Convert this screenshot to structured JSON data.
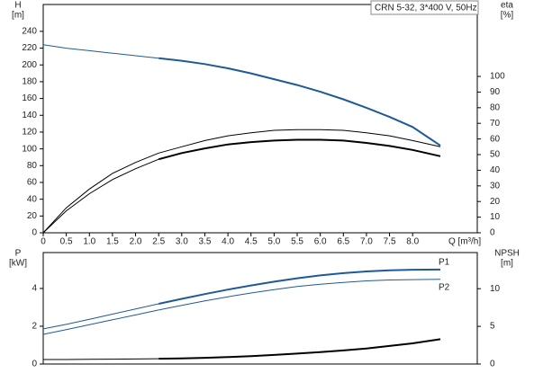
{
  "chart_data": [
    {
      "type": "line",
      "title": "CRN 5-32, 3*400 V, 50Hz",
      "ylabel": [
        "H",
        "[m]"
      ],
      "y2label": [
        "eta",
        "[%]"
      ],
      "xlabel": "Q [m³/h]",
      "xlim": [
        0,
        9.4
      ],
      "xticks": [
        0,
        0.5,
        {
          "value": 1,
          "label": "1.0"
        },
        1.5,
        {
          "value": 2,
          "label": "2.0"
        },
        2.5,
        {
          "value": 3,
          "label": "3.0"
        },
        3.5,
        {
          "value": 4,
          "label": "4.0"
        },
        4.5,
        {
          "value": 5,
          "label": "5.0"
        },
        5.5,
        {
          "value": 6,
          "label": "6.0"
        },
        6.5,
        {
          "value": 7,
          "label": "7.0"
        },
        7.5,
        {
          "value": 8,
          "label": "8.0"
        }
      ],
      "ylim": [
        0,
        272
      ],
      "yticks": [
        0,
        20,
        40,
        60,
        80,
        100,
        120,
        140,
        160,
        180,
        200,
        220,
        240
      ],
      "y2lim": [
        0,
        146
      ],
      "y2ticks": [
        0,
        10,
        20,
        30,
        40,
        50,
        60,
        70,
        80,
        90,
        100
      ],
      "series": [
        {
          "color": "#1f5a96",
          "width": 1,
          "x": [
            0,
            0.5,
            1,
            1.5,
            2,
            2.5
          ],
          "values": [
            224,
            220,
            217,
            214,
            211,
            208
          ]
        },
        {
          "color": "#1f5a96",
          "width": 2,
          "x": [
            2.5,
            3,
            3.5,
            4,
            4.5,
            5,
            5.5,
            6,
            6.5,
            7,
            7.5,
            8,
            8.6
          ],
          "values": [
            208,
            205,
            201,
            196,
            190,
            183,
            176,
            168,
            159,
            149,
            138,
            126,
            104
          ]
        },
        {
          "color": "#000000",
          "width": 1,
          "axis": "y2",
          "x": [
            0,
            0.5,
            1,
            1.5,
            2,
            2.5,
            3,
            3.5,
            4,
            4.5,
            5,
            5.5,
            6,
            6.5,
            7,
            7.5,
            8,
            8.6
          ],
          "values": [
            0,
            16,
            28,
            38,
            45,
            51,
            55,
            59,
            62,
            64,
            65.5,
            66,
            66,
            65.5,
            64,
            62,
            59,
            55
          ]
        },
        {
          "color": "#000000",
          "width": 1,
          "axis": "y2",
          "x": [
            0,
            0.5,
            1,
            1.5,
            2,
            2.5
          ],
          "values": [
            0,
            14,
            25,
            34,
            41,
            47
          ]
        },
        {
          "color": "#000000",
          "width": 2,
          "axis": "y2",
          "x": [
            2.5,
            3,
            3.5,
            4,
            4.5,
            5,
            5.5,
            6,
            6.5,
            7,
            7.5,
            8,
            8.6
          ],
          "values": [
            47,
            51,
            54,
            56.5,
            58,
            59,
            59.5,
            59.5,
            59,
            57.5,
            55.5,
            53,
            49
          ]
        }
      ]
    },
    {
      "type": "line",
      "ylabel": [
        "P",
        "[kW]"
      ],
      "y2label": [
        "NPSH",
        "[m]"
      ],
      "xlim": [
        0,
        9.4
      ],
      "ylim": [
        0,
        5.9
      ],
      "yticks": [
        0,
        2,
        4
      ],
      "y2lim": [
        0,
        14.8
      ],
      "y2ticks": [
        0,
        5,
        10
      ],
      "series": [
        {
          "color": "#1f5a96",
          "width": 1,
          "x": [
            0,
            0.5,
            1,
            1.5,
            2,
            2.5
          ],
          "values": [
            1.86,
            2.1,
            2.37,
            2.64,
            2.91,
            3.19
          ]
        },
        {
          "name": "P1",
          "color": "#1f5a96",
          "width": 2,
          "x": [
            2.5,
            3,
            3.5,
            4,
            4.5,
            5,
            5.5,
            6,
            6.5,
            7,
            7.5,
            8,
            8.6
          ],
          "values": [
            3.19,
            3.45,
            3.7,
            3.94,
            4.16,
            4.36,
            4.54,
            4.69,
            4.81,
            4.9,
            4.96,
            4.99,
            5.0
          ]
        },
        {
          "color": "#1f5a96",
          "width": 1,
          "x": [
            0,
            0.5,
            1,
            1.5,
            2,
            2.5
          ],
          "values": [
            1.57,
            1.82,
            2.08,
            2.34,
            2.6,
            2.86
          ]
        },
        {
          "name": "P2",
          "color": "#1f5a96",
          "width": 1,
          "x": [
            2.5,
            3,
            3.5,
            4,
            4.5,
            5,
            5.5,
            6,
            6.5,
            7,
            7.5,
            8,
            8.6
          ],
          "values": [
            2.86,
            3.1,
            3.34,
            3.56,
            3.76,
            3.94,
            4.1,
            4.22,
            4.32,
            4.4,
            4.45,
            4.47,
            4.48
          ]
        },
        {
          "color": "#000000",
          "width": 1,
          "axis": "y2",
          "x": [
            0,
            0.5,
            1,
            1.5,
            2,
            2.5
          ],
          "values": [
            0.6,
            0.6,
            0.62,
            0.64,
            0.67,
            0.7
          ]
        },
        {
          "color": "#000000",
          "width": 2,
          "axis": "y2",
          "x": [
            2.5,
            3,
            3.5,
            4,
            4.5,
            5,
            5.5,
            6,
            6.5,
            7,
            7.5,
            8,
            8.6
          ],
          "values": [
            0.7,
            0.75,
            0.82,
            0.92,
            1.05,
            1.2,
            1.38,
            1.58,
            1.8,
            2.07,
            2.4,
            2.75,
            3.3
          ]
        }
      ]
    }
  ]
}
